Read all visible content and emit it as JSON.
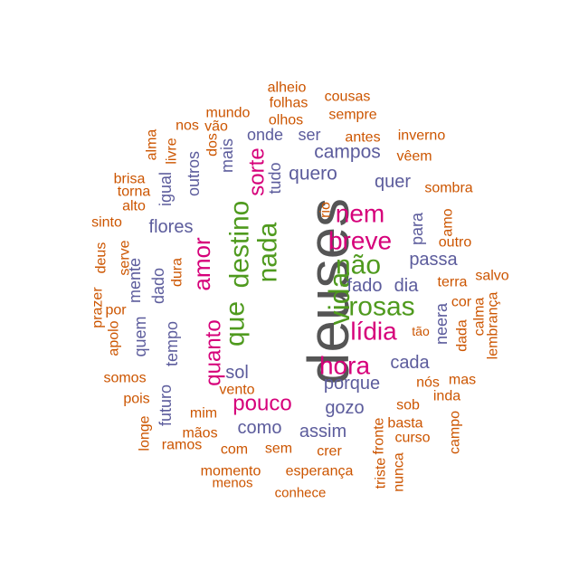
{
  "colors": {
    "tier1": "#555555",
    "tier2": "#4f9a1e",
    "tier3": "#d6007a",
    "tier4": "#5c5c9c",
    "tier5": "#cc5500"
  },
  "words": [
    {
      "text": "deuses",
      "tier": 1
    },
    {
      "text": "vida",
      "tier": 2
    },
    {
      "text": "destino",
      "tier": 2
    },
    {
      "text": "nada",
      "tier": 2
    },
    {
      "text": "que",
      "tier": 2
    },
    {
      "text": "não",
      "tier": 2
    },
    {
      "text": "rosas",
      "tier": 2
    },
    {
      "text": "nem",
      "tier": 3
    },
    {
      "text": "breve",
      "tier": 3
    },
    {
      "text": "hora",
      "tier": 3
    },
    {
      "text": "lídia",
      "tier": 3
    },
    {
      "text": "amor",
      "tier": 3
    },
    {
      "text": "sorte",
      "tier": 3
    },
    {
      "text": "quanto",
      "tier": 3
    },
    {
      "text": "pouco",
      "tier": 3
    },
    {
      "text": "campos",
      "tier": 4
    },
    {
      "text": "quero",
      "tier": 4
    },
    {
      "text": "quer",
      "tier": 4
    },
    {
      "text": "passa",
      "tier": 4
    },
    {
      "text": "fado",
      "tier": 4
    },
    {
      "text": "dia",
      "tier": 4
    },
    {
      "text": "cada",
      "tier": 4
    },
    {
      "text": "porque",
      "tier": 4
    },
    {
      "text": "gozo",
      "tier": 4
    },
    {
      "text": "como",
      "tier": 4
    },
    {
      "text": "assim",
      "tier": 4
    },
    {
      "text": "sol",
      "tier": 4
    },
    {
      "text": "flores",
      "tier": 4
    },
    {
      "text": "ser",
      "tier": 4
    },
    {
      "text": "onde",
      "tier": 4
    },
    {
      "text": "tudo",
      "tier": 4
    },
    {
      "text": "mais",
      "tier": 4
    },
    {
      "text": "outros",
      "tier": 4
    },
    {
      "text": "igual",
      "tier": 4
    },
    {
      "text": "dado",
      "tier": 4
    },
    {
      "text": "mente",
      "tier": 4
    },
    {
      "text": "quem",
      "tier": 4
    },
    {
      "text": "tempo",
      "tier": 4
    },
    {
      "text": "futuro",
      "tier": 4
    },
    {
      "text": "para",
      "tier": 4
    },
    {
      "text": "neera",
      "tier": 4
    },
    {
      "text": "alheio",
      "tier": 5
    },
    {
      "text": "folhas",
      "tier": 5
    },
    {
      "text": "olhos",
      "tier": 5
    },
    {
      "text": "cousas",
      "tier": 5
    },
    {
      "text": "sempre",
      "tier": 5
    },
    {
      "text": "mundo",
      "tier": 5
    },
    {
      "text": "nos",
      "tier": 5
    },
    {
      "text": "vão",
      "tier": 5
    },
    {
      "text": "dos",
      "tier": 5
    },
    {
      "text": "alma",
      "tier": 5
    },
    {
      "text": "livre",
      "tier": 5
    },
    {
      "text": "antes",
      "tier": 5
    },
    {
      "text": "inverno",
      "tier": 5
    },
    {
      "text": "vêem",
      "tier": 5
    },
    {
      "text": "brisa",
      "tier": 5
    },
    {
      "text": "torna",
      "tier": 5
    },
    {
      "text": "alto",
      "tier": 5
    },
    {
      "text": "sombra",
      "tier": 5
    },
    {
      "text": "sinto",
      "tier": 5
    },
    {
      "text": "deus",
      "tier": 5
    },
    {
      "text": "serve",
      "tier": 5
    },
    {
      "text": "prazer",
      "tier": 5
    },
    {
      "text": "por",
      "tier": 5
    },
    {
      "text": "apolo",
      "tier": 5
    },
    {
      "text": "somos",
      "tier": 5
    },
    {
      "text": "pois",
      "tier": 5
    },
    {
      "text": "longe",
      "tier": 5
    },
    {
      "text": "ramos",
      "tier": 5
    },
    {
      "text": "mãos",
      "tier": 5
    },
    {
      "text": "mim",
      "tier": 5
    },
    {
      "text": "vento",
      "tier": 5
    },
    {
      "text": "dura",
      "tier": 5
    },
    {
      "text": "com",
      "tier": 5
    },
    {
      "text": "sem",
      "tier": 5
    },
    {
      "text": "crer",
      "tier": 5
    },
    {
      "text": "momento",
      "tier": 5
    },
    {
      "text": "esperança",
      "tier": 5
    },
    {
      "text": "menos",
      "tier": 5
    },
    {
      "text": "conhece",
      "tier": 5
    },
    {
      "text": "rio",
      "tier": 5
    },
    {
      "text": "amo",
      "tier": 5
    },
    {
      "text": "outro",
      "tier": 5
    },
    {
      "text": "terra",
      "tier": 5
    },
    {
      "text": "salvo",
      "tier": 5
    },
    {
      "text": "cor",
      "tier": 5
    },
    {
      "text": "calma",
      "tier": 5
    },
    {
      "text": "dada",
      "tier": 5
    },
    {
      "text": "lembrança",
      "tier": 5
    },
    {
      "text": "tão",
      "tier": 5
    },
    {
      "text": "mas",
      "tier": 5
    },
    {
      "text": "nós",
      "tier": 5
    },
    {
      "text": "inda",
      "tier": 5
    },
    {
      "text": "sob",
      "tier": 5
    },
    {
      "text": "basta",
      "tier": 5
    },
    {
      "text": "curso",
      "tier": 5
    },
    {
      "text": "campo",
      "tier": 5
    },
    {
      "text": "fronte",
      "tier": 5
    },
    {
      "text": "triste",
      "tier": 5
    },
    {
      "text": "nunca",
      "tier": 5
    }
  ]
}
